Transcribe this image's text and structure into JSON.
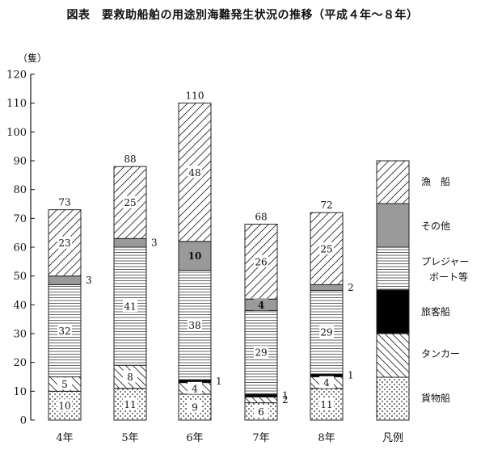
{
  "chart_data": {
    "type": "bar",
    "stacked": true,
    "title": "図表　要救助船舶の用途別海難発生状況の推移（平成４年～８年）",
    "ylabel": "（隻）",
    "ylim": [
      0,
      120
    ],
    "yticks": [
      0,
      10,
      20,
      30,
      40,
      50,
      60,
      70,
      80,
      90,
      100,
      110,
      120
    ],
    "categories": [
      "4年",
      "5年",
      "6年",
      "7年",
      "8年"
    ],
    "legend_label": "凡例",
    "legend_placement": "right",
    "grid": false,
    "series": [
      {
        "name": "貨物船",
        "values": [
          10,
          11,
          9,
          6,
          11
        ],
        "pattern": "dots"
      },
      {
        "name": "タンカー",
        "values": [
          5,
          8,
          4,
          2,
          4
        ],
        "pattern": "diagonal-up"
      },
      {
        "name": "旅客船",
        "values": [
          0,
          0,
          1,
          1,
          1
        ],
        "pattern": "solid-black"
      },
      {
        "name": "プレジャーボート等",
        "values": [
          32,
          41,
          38,
          29,
          29
        ],
        "pattern": "horizontal"
      },
      {
        "name": "その他",
        "values": [
          3,
          3,
          10,
          4,
          2
        ],
        "pattern": "gray"
      },
      {
        "name": "漁船",
        "values": [
          23,
          25,
          48,
          26,
          25
        ],
        "pattern": "diagonal-down"
      }
    ],
    "totals": [
      73,
      88,
      110,
      68,
      72
    ],
    "legend_names": [
      "漁　船",
      "その他",
      "プレジャー",
      "ボート等",
      "旅客船",
      "タンカー",
      "貨物船"
    ]
  },
  "colors": {
    "gray": "#9a9a9a",
    "black": "#000000",
    "line": "#222222"
  }
}
